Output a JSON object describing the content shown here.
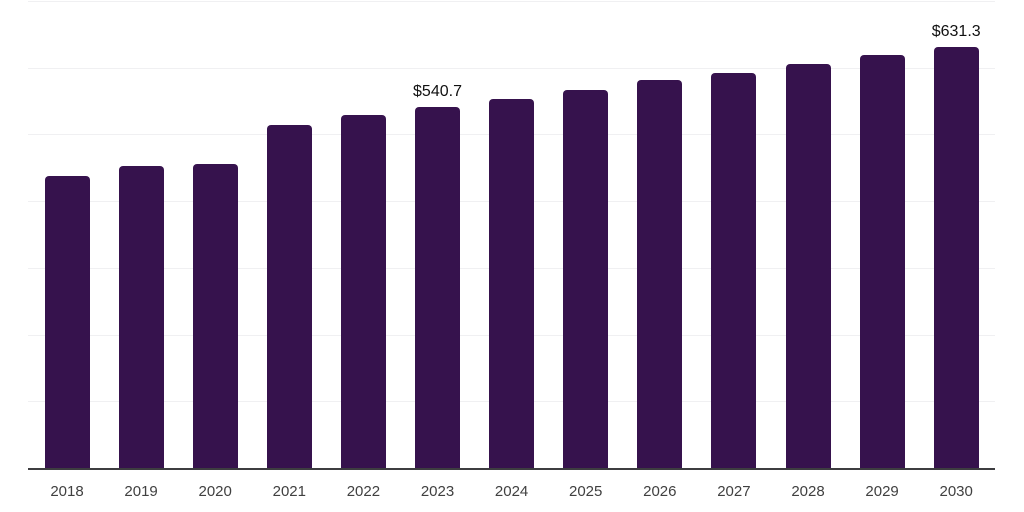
{
  "chart_data": {
    "type": "bar",
    "title": "",
    "xlabel": "",
    "ylabel": "",
    "ylim": [
      0,
      700
    ],
    "gridline_step": 100,
    "grid": "horizontal",
    "legend": "none",
    "categories": [
      "2018",
      "2019",
      "2020",
      "2021",
      "2022",
      "2023",
      "2024",
      "2025",
      "2026",
      "2027",
      "2028",
      "2029",
      "2030"
    ],
    "values": [
      437.3,
      453.0,
      456.4,
      513.8,
      529.0,
      540.7,
      553.0,
      566.9,
      581.1,
      592.3,
      605.6,
      618.9,
      631.3
    ],
    "data_labels": [
      {
        "category": "2023",
        "text": "$540.7"
      },
      {
        "category": "2030",
        "text": "$631.3"
      }
    ],
    "currency_prefix": "$",
    "colors": {
      "bar": "#36124D",
      "gridline": "#F0F0F2",
      "axis_line": "#3D3D40",
      "tick_label": "#404040",
      "data_label": "#111111",
      "background": "#FFFFFF"
    }
  }
}
